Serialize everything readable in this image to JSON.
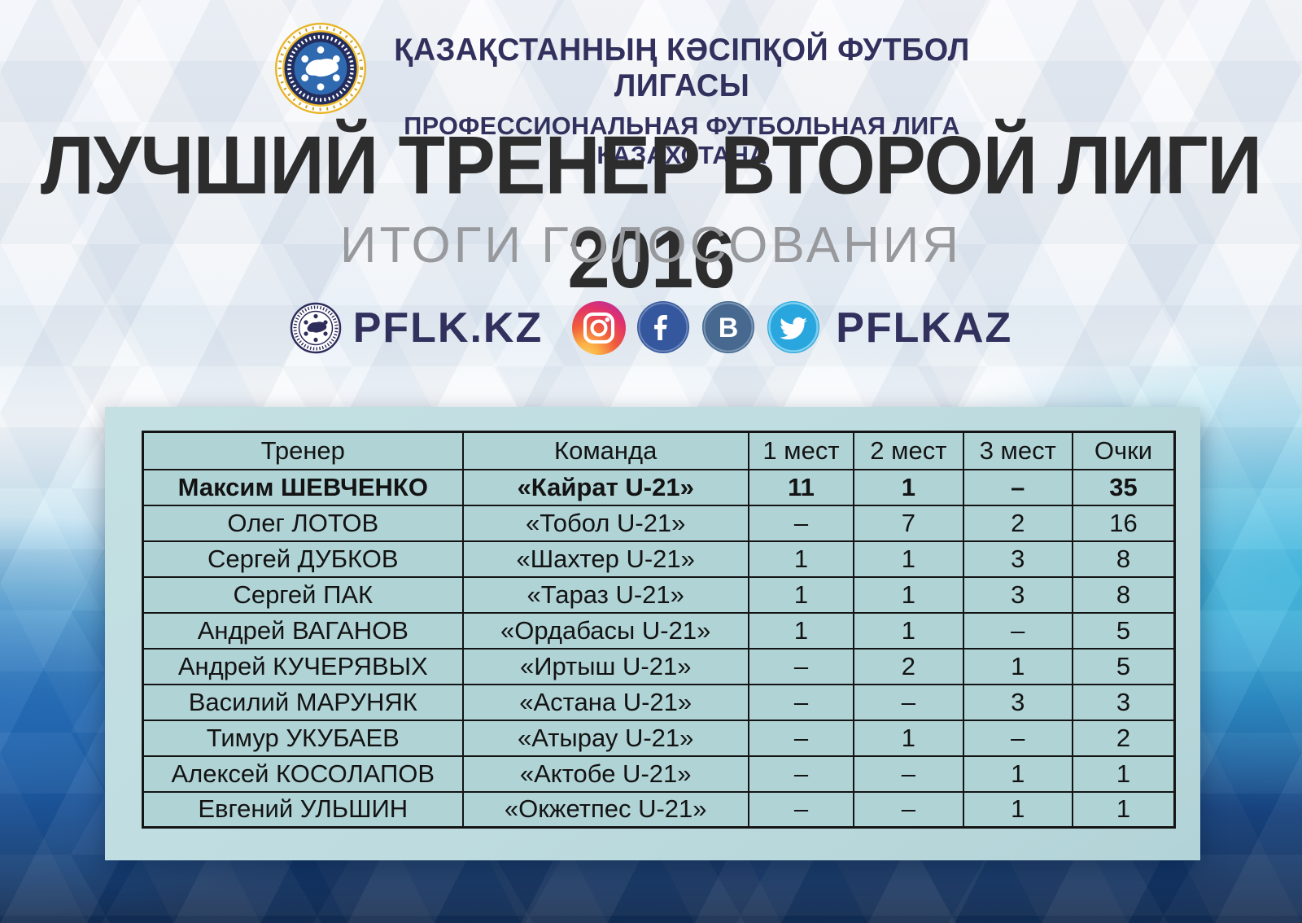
{
  "header": {
    "line1": "ҚАЗАҚСТАННЫҢ КӘСІПҚОЙ ФУТБОЛ ЛИГАСЫ",
    "line2": "ПРОФЕССИОНАЛЬНАЯ ФУТБОЛЬНАЯ ЛИГА КАЗАХСТАНА"
  },
  "title": "ЛУЧШИЙ ТРЕНЕР ВТОРОЙ ЛИГИ 2016",
  "subtitle": "ИТОГИ ГОЛОСОВАНИЯ",
  "social": {
    "site_label": "PFLK.KZ",
    "handle_label": "PFLKAZ",
    "icons": [
      "league-logo-mono",
      "instagram-icon",
      "facebook-icon",
      "vk-icon",
      "twitter-icon"
    ]
  },
  "table": {
    "columns": [
      "Тренер",
      "Команда",
      "1 мест",
      "2 мест",
      "3 мест",
      "Очки"
    ],
    "rows": [
      {
        "cells": [
          "Максим ШЕВЧЕНКО",
          "«Кайрат U-21»",
          "11",
          "1",
          "–",
          "35"
        ],
        "emphasis": true
      },
      {
        "cells": [
          "Олег ЛОТОВ",
          "«Тобол U-21»",
          "–",
          "7",
          "2",
          "16"
        ],
        "emphasis": false
      },
      {
        "cells": [
          "Сергей ДУБКОВ",
          "«Шахтер U-21»",
          "1",
          "1",
          "3",
          "8"
        ],
        "emphasis": false
      },
      {
        "cells": [
          "Сергей ПАК",
          "«Тараз U-21»",
          "1",
          "1",
          "3",
          "8"
        ],
        "emphasis": false
      },
      {
        "cells": [
          "Андрей ВАГАНОВ",
          "«Ордабасы U-21»",
          "1",
          "1",
          "–",
          "5"
        ],
        "emphasis": false
      },
      {
        "cells": [
          "Андрей КУЧЕРЯВЫХ",
          "«Иртыш U-21»",
          "–",
          "2",
          "1",
          "5"
        ],
        "emphasis": false
      },
      {
        "cells": [
          "Василий МАРУНЯК",
          "«Астана U-21»",
          "–",
          "–",
          "3",
          "3"
        ],
        "emphasis": false
      },
      {
        "cells": [
          "Тимур УКУБАЕВ",
          "«Атырау U-21»",
          "–",
          "1",
          "–",
          "2"
        ],
        "emphasis": false
      },
      {
        "cells": [
          "Алексей КОСОЛАПОВ",
          "«Актобе U-21»",
          "–",
          "–",
          "1",
          "1"
        ],
        "emphasis": false
      },
      {
        "cells": [
          "Евгений УЛЬШИН",
          "«Окжетпес U-21»",
          "–",
          "–",
          "1",
          "1"
        ],
        "emphasis": false
      }
    ]
  },
  "colors": {
    "navy_text": "#32315e",
    "title_black": "#2d2d2d",
    "subtitle_gray": "#98999c",
    "gold": "#edbb2d",
    "badge_navy": "#232d5e",
    "badge_blue": "#2f6ab1",
    "facebook_blue": "#35579e",
    "vk_blue": "#47698f",
    "twitter_blue": "#2aa6de",
    "panel_bg": "#bedce0",
    "cell_bg": "#b0d3d6",
    "border_black": "#141414"
  }
}
